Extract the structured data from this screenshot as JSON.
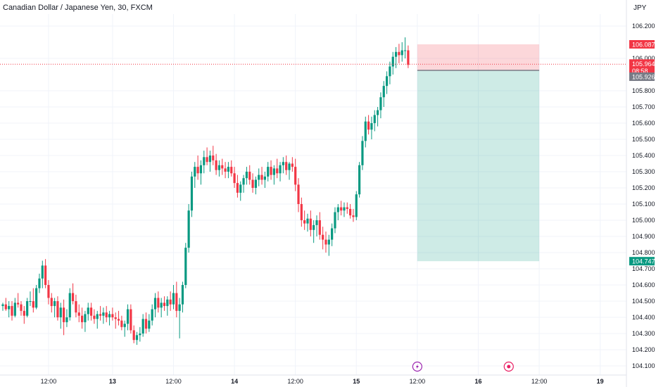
{
  "header": {
    "symbol_title": "Canadian Dollar / Japanese Yen, 30, FXCM",
    "currency": "JPY"
  },
  "chart_data": {
    "type": "candlestick",
    "symbol": "Canadian Dollar / Japanese Yen",
    "interval": "30",
    "source": "FXCM",
    "currency": "JPY",
    "ylim": [
      104.05,
      106.27
    ],
    "y_ticks": [
      "106.200",
      "106.000",
      "105.800",
      "105.700",
      "105.600",
      "105.500",
      "105.400",
      "105.300",
      "105.200",
      "105.100",
      "105.000",
      "104.900",
      "104.800",
      "104.700",
      "104.600",
      "104.500",
      "104.400",
      "104.300",
      "104.200",
      "104.100"
    ],
    "y_tick_values": [
      106.2,
      106.0,
      105.8,
      105.7,
      105.6,
      105.5,
      105.4,
      105.3,
      105.2,
      105.1,
      105.0,
      104.9,
      104.8,
      104.7,
      104.6,
      104.5,
      104.4,
      104.3,
      104.2,
      104.1
    ],
    "x_ticks": [
      "12:00",
      "13",
      "12:00",
      "14",
      "12:00",
      "15",
      "12:00",
      "16",
      "12:00",
      "19"
    ],
    "x_tick_index": [
      15,
      36,
      56,
      76,
      96,
      116,
      136,
      156,
      176,
      196
    ],
    "price_tags": [
      {
        "label": "106.087",
        "value": 106.087,
        "color": "#f23645"
      },
      {
        "label": "105.964",
        "value": 105.964,
        "color": "#f23645"
      },
      {
        "label": "08:58",
        "value": 105.93,
        "color": "#f23645"
      },
      {
        "label": "105.926",
        "value": 105.926,
        "color": "#787b86"
      },
      {
        "label": "104.747",
        "value": 104.747,
        "color": "#089981"
      }
    ],
    "position": {
      "type": "short",
      "entry": 105.926,
      "stop": 106.087,
      "target": 104.747,
      "start_index": 136,
      "end_index": 176,
      "loss_color": "#f23645",
      "profit_color": "#089981"
    },
    "current_price": 105.964,
    "event_markers": [
      {
        "icon": "lightning-icon",
        "index": 136,
        "color": "#9c27b0"
      },
      {
        "icon": "dot-icon",
        "index": 166,
        "color": "#e91e63"
      }
    ],
    "colors": {
      "up": "#089981",
      "down": "#f23645"
    },
    "candles": [
      [
        104.47,
        104.49,
        104.44,
        104.48
      ],
      [
        104.48,
        104.52,
        104.44,
        104.45
      ],
      [
        104.45,
        104.5,
        104.4,
        104.47
      ],
      [
        104.47,
        104.5,
        104.38,
        104.41
      ],
      [
        104.41,
        104.52,
        104.4,
        104.49
      ],
      [
        104.49,
        104.55,
        104.46,
        104.48
      ],
      [
        104.48,
        104.5,
        104.41,
        104.44
      ],
      [
        104.44,
        104.47,
        104.36,
        104.41
      ],
      [
        104.41,
        104.52,
        104.4,
        104.5
      ],
      [
        104.5,
        104.56,
        104.47,
        104.5
      ],
      [
        104.5,
        104.58,
        104.43,
        104.46
      ],
      [
        104.46,
        104.6,
        104.45,
        104.58
      ],
      [
        104.58,
        104.67,
        104.55,
        104.64
      ],
      [
        104.64,
        104.75,
        104.58,
        104.72
      ],
      [
        104.72,
        104.76,
        104.58,
        104.6
      ],
      [
        104.6,
        104.63,
        104.48,
        104.52
      ],
      [
        104.52,
        104.55,
        104.43,
        104.47
      ],
      [
        104.47,
        104.52,
        104.4,
        104.5
      ],
      [
        104.5,
        104.53,
        104.38,
        104.4
      ],
      [
        104.4,
        104.49,
        104.33,
        104.46
      ],
      [
        104.46,
        104.51,
        104.29,
        104.37
      ],
      [
        104.37,
        104.45,
        104.34,
        104.4
      ],
      [
        104.4,
        104.58,
        104.38,
        104.55
      ],
      [
        104.55,
        104.61,
        104.48,
        104.5
      ],
      [
        104.5,
        104.54,
        104.4,
        104.43
      ],
      [
        104.43,
        104.48,
        104.37,
        104.41
      ],
      [
        104.41,
        104.46,
        104.33,
        104.37
      ],
      [
        104.37,
        104.44,
        104.31,
        104.42
      ],
      [
        104.42,
        104.49,
        104.38,
        104.46
      ],
      [
        104.46,
        104.49,
        104.38,
        104.41
      ],
      [
        104.41,
        104.45,
        104.36,
        104.39
      ],
      [
        104.39,
        104.44,
        104.33,
        104.42
      ],
      [
        104.42,
        104.47,
        104.38,
        104.41
      ],
      [
        104.41,
        104.46,
        104.36,
        104.43
      ],
      [
        104.43,
        104.47,
        104.37,
        104.4
      ],
      [
        104.4,
        104.44,
        104.35,
        104.42
      ],
      [
        104.42,
        104.46,
        104.38,
        104.4
      ],
      [
        104.4,
        104.43,
        104.33,
        104.39
      ],
      [
        104.39,
        104.44,
        104.35,
        104.38
      ],
      [
        104.38,
        104.41,
        104.32,
        104.34
      ],
      [
        104.34,
        104.38,
        104.28,
        104.36
      ],
      [
        104.36,
        104.48,
        104.32,
        104.45
      ],
      [
        104.45,
        104.48,
        104.3,
        104.32
      ],
      [
        104.32,
        104.35,
        104.24,
        104.26
      ],
      [
        104.26,
        104.31,
        104.23,
        104.29
      ],
      [
        104.29,
        104.34,
        104.25,
        104.3
      ],
      [
        104.3,
        104.42,
        104.28,
        104.39
      ],
      [
        104.39,
        104.43,
        104.3,
        104.33
      ],
      [
        104.33,
        104.42,
        104.31,
        104.38
      ],
      [
        104.38,
        104.48,
        104.35,
        104.45
      ],
      [
        104.45,
        104.55,
        104.4,
        104.52
      ],
      [
        104.52,
        104.56,
        104.43,
        104.46
      ],
      [
        104.46,
        104.52,
        104.4,
        104.49
      ],
      [
        104.49,
        104.53,
        104.44,
        104.47
      ],
      [
        104.47,
        104.53,
        104.41,
        104.51
      ],
      [
        104.51,
        104.56,
        104.44,
        104.48
      ],
      [
        104.48,
        104.6,
        104.45,
        104.55
      ],
      [
        104.55,
        104.62,
        104.4,
        104.44
      ],
      [
        104.44,
        104.52,
        104.27,
        104.48
      ],
      [
        104.48,
        104.62,
        104.43,
        104.6
      ],
      [
        104.6,
        104.86,
        104.58,
        104.83
      ],
      [
        104.83,
        105.1,
        104.8,
        105.06
      ],
      [
        105.06,
        105.3,
        105.02,
        105.27
      ],
      [
        105.27,
        105.36,
        105.2,
        105.33
      ],
      [
        105.33,
        105.4,
        105.25,
        105.29
      ],
      [
        105.29,
        105.37,
        105.22,
        105.34
      ],
      [
        105.34,
        105.43,
        105.29,
        105.39
      ],
      [
        105.39,
        105.45,
        105.34,
        105.36
      ],
      [
        105.36,
        105.43,
        105.3,
        105.4
      ],
      [
        105.4,
        105.46,
        105.34,
        105.37
      ],
      [
        105.37,
        105.41,
        105.28,
        105.31
      ],
      [
        105.31,
        105.37,
        105.27,
        105.34
      ],
      [
        105.34,
        105.38,
        105.28,
        105.32
      ],
      [
        105.32,
        105.36,
        105.26,
        105.3
      ],
      [
        105.3,
        105.36,
        105.26,
        105.33
      ],
      [
        105.33,
        105.37,
        105.27,
        105.29
      ],
      [
        105.29,
        105.33,
        105.2,
        105.23
      ],
      [
        105.23,
        105.28,
        105.14,
        105.17
      ],
      [
        105.17,
        105.24,
        105.12,
        105.22
      ],
      [
        105.22,
        105.28,
        105.17,
        105.26
      ],
      [
        105.26,
        105.33,
        105.22,
        105.3
      ],
      [
        105.3,
        105.34,
        105.22,
        105.25
      ],
      [
        105.25,
        105.29,
        105.17,
        105.2
      ],
      [
        105.2,
        105.27,
        105.16,
        105.25
      ],
      [
        105.25,
        105.32,
        105.21,
        105.28
      ],
      [
        105.28,
        105.33,
        105.22,
        105.25
      ],
      [
        105.25,
        105.3,
        105.2,
        105.27
      ],
      [
        105.27,
        105.36,
        105.24,
        105.33
      ],
      [
        105.33,
        105.37,
        105.25,
        105.28
      ],
      [
        105.28,
        105.34,
        105.22,
        105.32
      ],
      [
        105.32,
        105.38,
        105.26,
        105.29
      ],
      [
        105.29,
        105.36,
        105.24,
        105.34
      ],
      [
        105.34,
        105.39,
        105.29,
        105.36
      ],
      [
        105.36,
        105.4,
        105.28,
        105.31
      ],
      [
        105.31,
        105.36,
        105.25,
        105.35
      ],
      [
        105.35,
        105.39,
        105.3,
        105.33
      ],
      [
        105.33,
        105.38,
        105.18,
        105.22
      ],
      [
        105.22,
        105.26,
        105.05,
        105.1
      ],
      [
        105.1,
        105.14,
        104.96,
        105.0
      ],
      [
        105.0,
        105.06,
        104.94,
        104.98
      ],
      [
        104.98,
        105.04,
        104.93,
        105.01
      ],
      [
        105.01,
        105.06,
        104.9,
        104.94
      ],
      [
        104.94,
        105.0,
        104.86,
        104.97
      ],
      [
        104.97,
        105.03,
        104.9,
        105.0
      ],
      [
        105.0,
        105.05,
        104.88,
        104.91
      ],
      [
        104.91,
        104.96,
        104.82,
        104.88
      ],
      [
        104.88,
        104.93,
        104.8,
        104.85
      ],
      [
        104.85,
        104.91,
        104.78,
        104.88
      ],
      [
        104.88,
        104.98,
        104.84,
        104.95
      ],
      [
        104.95,
        105.08,
        104.92,
        105.05
      ],
      [
        105.05,
        105.1,
        105.0,
        105.08
      ],
      [
        105.08,
        105.12,
        105.03,
        105.06
      ],
      [
        105.06,
        105.11,
        105.02,
        105.08
      ],
      [
        105.08,
        105.11,
        105.04,
        105.07
      ],
      [
        105.07,
        105.1,
        105.01,
        105.03
      ],
      [
        105.03,
        105.07,
        104.99,
        105.02
      ],
      [
        105.02,
        105.18,
        105.0,
        105.16
      ],
      [
        105.16,
        105.36,
        105.14,
        105.34
      ],
      [
        105.34,
        105.52,
        105.31,
        105.49
      ],
      [
        105.49,
        105.64,
        105.45,
        105.61
      ],
      [
        105.61,
        105.65,
        105.53,
        105.56
      ],
      [
        105.56,
        105.64,
        105.5,
        105.6
      ],
      [
        105.6,
        105.68,
        105.55,
        105.65
      ],
      [
        105.65,
        105.7,
        105.58,
        105.68
      ],
      [
        105.68,
        105.79,
        105.63,
        105.76
      ],
      [
        105.76,
        105.86,
        105.7,
        105.83
      ],
      [
        105.83,
        105.92,
        105.78,
        105.89
      ],
      [
        105.89,
        105.98,
        105.84,
        105.95
      ],
      [
        105.95,
        106.04,
        105.9,
        106.01
      ],
      [
        106.01,
        106.07,
        105.94,
        106.04
      ],
      [
        106.04,
        106.09,
        105.97,
        106.02
      ],
      [
        106.02,
        106.1,
        105.98,
        106.05
      ],
      [
        106.05,
        106.13,
        106.0,
        106.05
      ],
      [
        106.05,
        106.08,
        105.94,
        105.96
      ]
    ]
  }
}
